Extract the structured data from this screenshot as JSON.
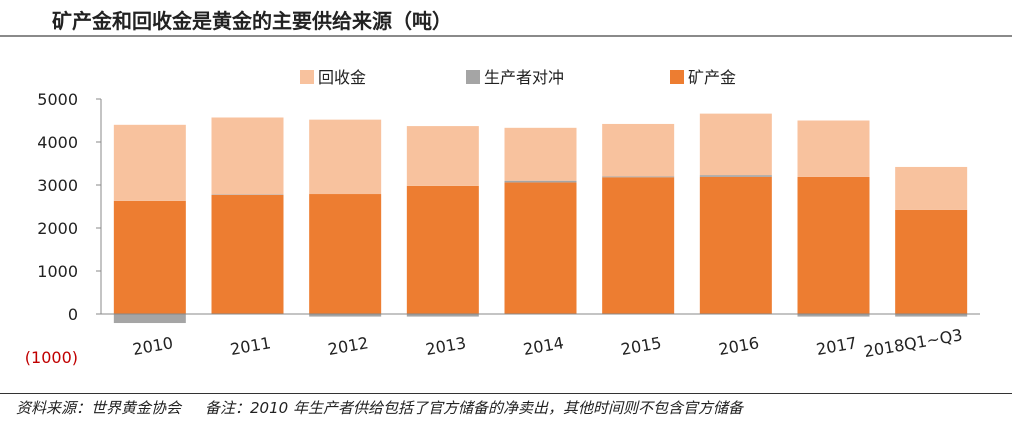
{
  "title": "矿产金和回收金是黄金的主要供给来源（吨）",
  "colors": {
    "mine": "#ED7D31",
    "hedging": "#A5A5A5",
    "recycle": "#F8C29E"
  },
  "chart_data": {
    "type": "bar",
    "stacked": true,
    "categories": [
      "2010",
      "2011",
      "2012",
      "2013",
      "2014",
      "2015",
      "2016",
      "2017",
      "2018Q1~Q3"
    ],
    "series": [
      {
        "name": "矿产金",
        "values": [
          2630,
          2770,
          2790,
          2980,
          3060,
          3180,
          3190,
          3190,
          2420
        ]
      },
      {
        "name": "生产者对冲",
        "values": [
          -210,
          10,
          -60,
          -60,
          40,
          20,
          40,
          -60,
          -60
        ]
      },
      {
        "name": "回收金",
        "values": [
          1770,
          1790,
          1730,
          1390,
          1230,
          1220,
          1430,
          1310,
          1000
        ]
      }
    ],
    "legend_order": [
      "回收金",
      "生产者对冲",
      "矿产金"
    ],
    "legend_position": "top",
    "ylim": [
      -1000,
      5000
    ],
    "yticks": [
      {
        "value": 5000,
        "label": "5000"
      },
      {
        "value": 4000,
        "label": "4000"
      },
      {
        "value": 3000,
        "label": "3000"
      },
      {
        "value": 2000,
        "label": "2000"
      },
      {
        "value": 1000,
        "label": "1000"
      },
      {
        "value": 0,
        "label": "0"
      },
      {
        "value": -1000,
        "label": "(1000)"
      }
    ],
    "grid": false
  },
  "footer": {
    "source": "资料来源：世界黄金协会",
    "note": "备注：2010 年生产者供给包括了官方储备的净卖出，其他时间则不包含官方储备"
  }
}
